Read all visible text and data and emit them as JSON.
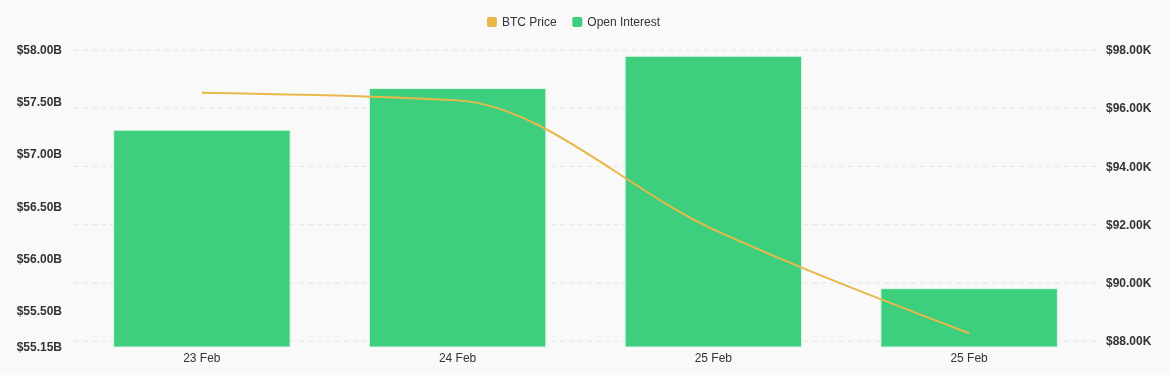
{
  "chart_data": {
    "type": "bar",
    "categories": [
      "23 Feb",
      "24 Feb",
      "25 Feb",
      "25 Feb"
    ],
    "series": [
      {
        "name": "BTC Price",
        "type": "line",
        "axis": "y2",
        "color": "#e8b84a",
        "values": [
          96.53,
          96.27,
          91.84,
          88.27
        ]
      },
      {
        "name": "Open Interest",
        "color": "#3ecf7e",
        "values": [
          57.23,
          57.63,
          57.94,
          55.71
        ]
      }
    ],
    "ylim": [
      55.15,
      58.0
    ],
    "yticks": [
      {
        "value": 55.15,
        "label": "$55.15B"
      },
      {
        "value": 55.5,
        "label": "$55.50B"
      },
      {
        "value": 56.0,
        "label": "$56.00B"
      },
      {
        "value": 56.5,
        "label": "$56.50B"
      },
      {
        "value": 57.0,
        "label": "$57.00B"
      },
      {
        "value": 57.5,
        "label": "$57.50B"
      },
      {
        "value": 58.0,
        "label": "$58.00B"
      }
    ],
    "y2lim": [
      87.8,
      98.0
    ],
    "y2ticks": [
      {
        "value": 88,
        "label": "$88.00K"
      },
      {
        "value": 90,
        "label": "$90.00K"
      },
      {
        "value": 92,
        "label": "$92.00K"
      },
      {
        "value": 94,
        "label": "$94.00K"
      },
      {
        "value": 96,
        "label": "$96.00K"
      },
      {
        "value": 98,
        "label": "$98.00K"
      }
    ],
    "grid": "y",
    "legend": "top"
  }
}
